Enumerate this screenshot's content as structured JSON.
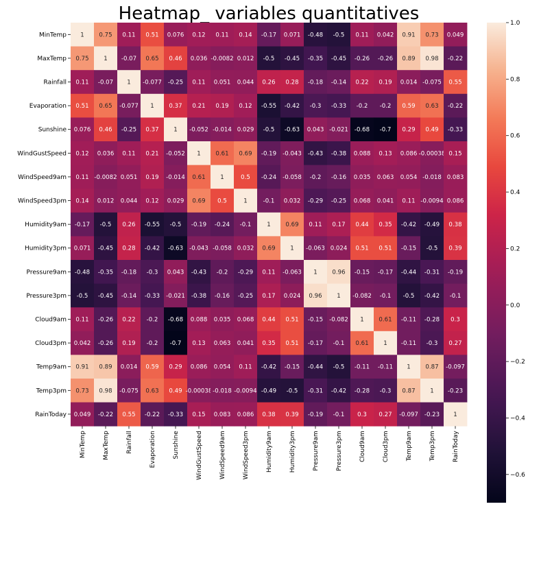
{
  "chart_data": {
    "type": "heatmap",
    "title": "Heatmap_ variables quantitatives",
    "xlabel": "",
    "ylabel": "",
    "variables": [
      "MinTemp",
      "MaxTemp",
      "Rainfall",
      "Evaporation",
      "Sunshine",
      "WindGustSpeed",
      "WindSpeed9am",
      "WindSpeed3pm",
      "Humidity9am",
      "Humidity3pm",
      "Pressure9am",
      "Pressure3pm",
      "Cloud9am",
      "Cloud3pm",
      "Temp9am",
      "Temp3pm",
      "RainToday"
    ],
    "values": [
      [
        "1",
        "0.75",
        "0.11",
        "0.51",
        "0.076",
        "0.12",
        "0.11",
        "0.14",
        "-0.17",
        "0.071",
        "-0.48",
        "-0.5",
        "0.11",
        "0.042",
        "0.91",
        "0.73",
        "0.049"
      ],
      [
        "0.75",
        "1",
        "-0.07",
        "0.65",
        "0.46",
        "0.036",
        "-0.0082",
        "0.012",
        "-0.5",
        "-0.45",
        "-0.35",
        "-0.45",
        "-0.26",
        "-0.26",
        "0.89",
        "0.98",
        "-0.22"
      ],
      [
        "0.11",
        "-0.07",
        "1",
        "-0.077",
        "-0.25",
        "0.11",
        "0.051",
        "0.044",
        "0.26",
        "0.28",
        "-0.18",
        "-0.14",
        "0.22",
        "0.19",
        "0.014",
        "-0.075",
        "0.55"
      ],
      [
        "0.51",
        "0.65",
        "-0.077",
        "1",
        "0.37",
        "0.21",
        "0.19",
        "0.12",
        "-0.55",
        "-0.42",
        "-0.3",
        "-0.33",
        "-0.2",
        "-0.2",
        "0.59",
        "0.63",
        "-0.22"
      ],
      [
        "0.076",
        "0.46",
        "-0.25",
        "0.37",
        "1",
        "-0.052",
        "-0.014",
        "0.029",
        "-0.5",
        "-0.63",
        "0.043",
        "-0.021",
        "-0.68",
        "-0.7",
        "0.29",
        "0.49",
        "-0.33"
      ],
      [
        "0.12",
        "0.036",
        "0.11",
        "0.21",
        "-0.052",
        "1",
        "0.61",
        "0.69",
        "-0.19",
        "-0.043",
        "-0.43",
        "-0.38",
        "0.088",
        "0.13",
        "0.086",
        "-0.00038",
        "0.15"
      ],
      [
        "0.11",
        "-0.0082",
        "0.051",
        "0.19",
        "-0.014",
        "0.61",
        "1",
        "0.5",
        "-0.24",
        "-0.058",
        "-0.2",
        "-0.16",
        "0.035",
        "0.063",
        "0.054",
        "-0.018",
        "0.083"
      ],
      [
        "0.14",
        "0.012",
        "0.044",
        "0.12",
        "0.029",
        "0.69",
        "0.5",
        "1",
        "-0.1",
        "0.032",
        "-0.29",
        "-0.25",
        "0.068",
        "0.041",
        "0.11",
        "-0.0094",
        "0.086"
      ],
      [
        "-0.17",
        "-0.5",
        "0.26",
        "-0.55",
        "-0.5",
        "-0.19",
        "-0.24",
        "-0.1",
        "1",
        "0.69",
        "0.11",
        "0.17",
        "0.44",
        "0.35",
        "-0.42",
        "-0.49",
        "0.38"
      ],
      [
        "0.071",
        "-0.45",
        "0.28",
        "-0.42",
        "-0.63",
        "-0.043",
        "-0.058",
        "0.032",
        "0.69",
        "1",
        "-0.063",
        "0.024",
        "0.51",
        "0.51",
        "-0.15",
        "-0.5",
        "0.39"
      ],
      [
        "-0.48",
        "-0.35",
        "-0.18",
        "-0.3",
        "0.043",
        "-0.43",
        "-0.2",
        "-0.29",
        "0.11",
        "-0.063",
        "1",
        "0.96",
        "-0.15",
        "-0.17",
        "-0.44",
        "-0.31",
        "-0.19"
      ],
      [
        "-0.5",
        "-0.45",
        "-0.14",
        "-0.33",
        "-0.021",
        "-0.38",
        "-0.16",
        "-0.25",
        "0.17",
        "0.024",
        "0.96",
        "1",
        "-0.082",
        "-0.1",
        "-0.5",
        "-0.42",
        "-0.1"
      ],
      [
        "0.11",
        "-0.26",
        "0.22",
        "-0.2",
        "-0.68",
        "0.088",
        "0.035",
        "0.068",
        "0.44",
        "0.51",
        "-0.15",
        "-0.082",
        "1",
        "0.61",
        "-0.11",
        "-0.28",
        "0.3"
      ],
      [
        "0.042",
        "-0.26",
        "0.19",
        "-0.2",
        "-0.7",
        "0.13",
        "0.063",
        "0.041",
        "0.35",
        "0.51",
        "-0.17",
        "-0.1",
        "0.61",
        "1",
        "-0.11",
        "-0.3",
        "0.27"
      ],
      [
        "0.91",
        "0.89",
        "0.014",
        "0.59",
        "0.29",
        "0.086",
        "0.054",
        "0.11",
        "-0.42",
        "-0.15",
        "-0.44",
        "-0.5",
        "-0.11",
        "-0.11",
        "1",
        "0.87",
        "-0.097"
      ],
      [
        "0.73",
        "0.98",
        "-0.075",
        "0.63",
        "0.49",
        "-0.00038",
        "-0.018",
        "-0.0094",
        "-0.49",
        "-0.5",
        "-0.31",
        "-0.42",
        "-0.28",
        "-0.3",
        "0.87",
        "1",
        "-0.23"
      ],
      [
        "0.049",
        "-0.22",
        "0.55",
        "-0.22",
        "-0.33",
        "0.15",
        "0.083",
        "0.086",
        "0.38",
        "0.39",
        "-0.19",
        "-0.1",
        "0.3",
        "0.27",
        "-0.097",
        "-0.23",
        "1"
      ]
    ],
    "colorbar": {
      "range": [
        -0.7,
        1.0
      ],
      "ticks": [
        -0.6,
        -0.4,
        -0.2,
        0.0,
        0.2,
        0.4,
        0.6,
        0.8,
        1.0
      ],
      "tick_labels": [
        "−0.6",
        "−0.4",
        "−0.2",
        "0.0",
        "0.2",
        "0.4",
        "0.6",
        "0.8",
        "1.0"
      ],
      "colormap": "rocket"
    },
    "annotations": true,
    "grid": false
  }
}
